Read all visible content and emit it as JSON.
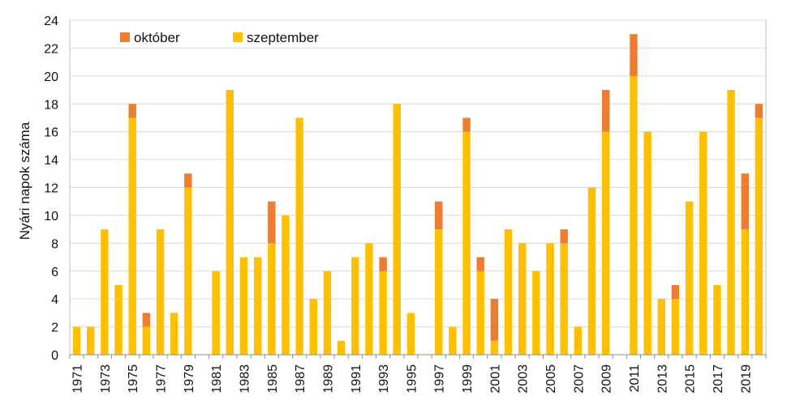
{
  "chart_data": {
    "type": "bar",
    "stacked": true,
    "ylabel": "Nyári napok száma",
    "xlabel": "",
    "ylim": [
      0,
      24
    ],
    "y_ticks": [
      0,
      2,
      4,
      6,
      8,
      10,
      12,
      14,
      16,
      18,
      20,
      22,
      24
    ],
    "grid": "horizontal",
    "legend_position": "top-left",
    "legend_order": [
      "október",
      "szeptember"
    ],
    "x_tick_labels": [
      "1971",
      "1973",
      "1975",
      "1977",
      "1979",
      "1981",
      "1983",
      "1985",
      "1987",
      "1989",
      "1991",
      "1993",
      "1995",
      "1997",
      "1999",
      "2001",
      "2003",
      "2005",
      "2007",
      "2009",
      "2011",
      "2013",
      "2015",
      "2017",
      "2019"
    ],
    "categories": [
      "1971",
      "1972",
      "1973",
      "1974",
      "1975",
      "1976",
      "1977",
      "1978",
      "1979",
      "1980",
      "1981",
      "1982",
      "1983",
      "1984",
      "1985",
      "1986",
      "1987",
      "1988",
      "1989",
      "1990",
      "1991",
      "1992",
      "1993",
      "1994",
      "1995",
      "1996",
      "1997",
      "1998",
      "1999",
      "2000",
      "2001",
      "2002",
      "2003",
      "2004",
      "2005",
      "2006",
      "2007",
      "2008",
      "2009",
      "2010",
      "2011",
      "2012",
      "2013",
      "2014",
      "2015",
      "2016",
      "2017",
      "2018",
      "2019",
      "2020"
    ],
    "series": [
      {
        "name": "szeptember",
        "color": "#FFC000",
        "values": [
          2,
          2,
          9,
          5,
          17,
          2,
          9,
          3,
          12,
          0,
          6,
          19,
          7,
          7,
          8,
          10,
          17,
          4,
          6,
          1,
          7,
          8,
          6,
          18,
          3,
          0,
          9,
          2,
          16,
          6,
          1,
          9,
          8,
          6,
          8,
          8,
          2,
          12,
          16,
          0,
          20,
          16,
          4,
          4,
          11,
          16,
          5,
          19,
          9,
          17
        ]
      },
      {
        "name": "október",
        "color": "#ED7D31",
        "values": [
          0,
          0,
          0,
          0,
          1,
          1,
          0,
          0,
          1,
          0,
          0,
          0,
          0,
          0,
          3,
          0,
          0,
          0,
          0,
          0,
          0,
          0,
          1,
          0,
          0,
          0,
          2,
          0,
          1,
          1,
          3,
          0,
          0,
          0,
          0,
          1,
          0,
          0,
          3,
          0,
          3,
          0,
          0,
          1,
          0,
          0,
          0,
          0,
          4,
          1
        ]
      }
    ]
  }
}
